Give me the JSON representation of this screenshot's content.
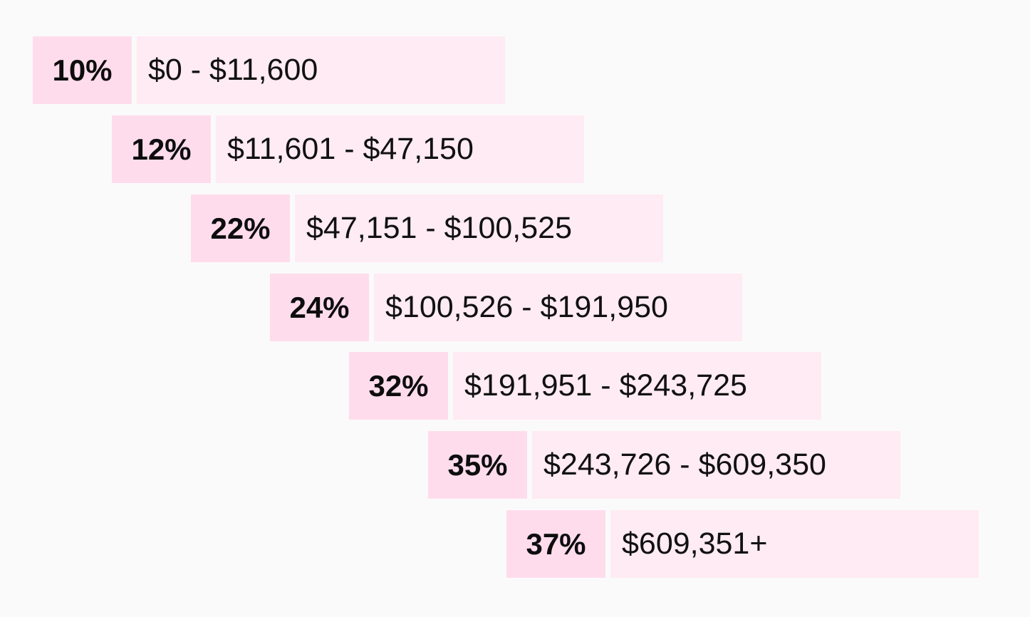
{
  "colors": {
    "background": "#fafafa",
    "rate_fill": "#ffdcec",
    "range_fill": "#ffebf3"
  },
  "brackets": [
    {
      "rate": "10%",
      "range": "$0 - $11,600"
    },
    {
      "rate": "12%",
      "range": "$11,601 - $47,150"
    },
    {
      "rate": "22%",
      "range": "$47,151 - $100,525"
    },
    {
      "rate": "24%",
      "range": "$100,526 - $191,950"
    },
    {
      "rate": "32%",
      "range": "$191,951 - $243,725"
    },
    {
      "rate": "35%",
      "range": "$243,726 - $609,350"
    },
    {
      "rate": "37%",
      "range": "$609,351+"
    }
  ]
}
